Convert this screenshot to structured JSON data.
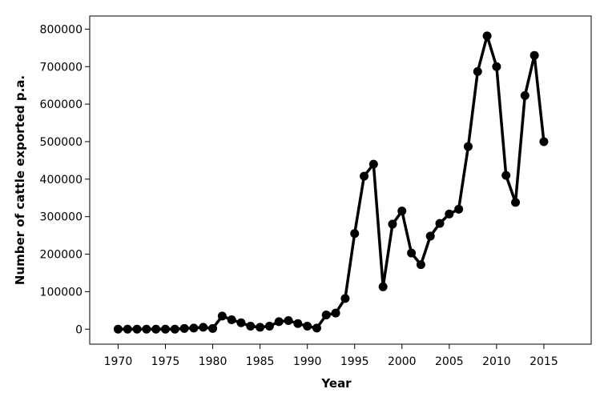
{
  "chart_data": {
    "type": "line",
    "title": "",
    "xlabel": "Year",
    "ylabel": "Number of cattle exported p.a.",
    "xlim": [
      1967,
      2020
    ],
    "ylim": [
      -40000,
      835000
    ],
    "x_ticks": [
      1970,
      1975,
      1980,
      1985,
      1990,
      1995,
      2000,
      2005,
      2010,
      2015
    ],
    "y_ticks": [
      0,
      100000,
      200000,
      300000,
      400000,
      500000,
      600000,
      700000,
      800000
    ],
    "grid": false,
    "legend": "none",
    "colors": {
      "line": "#000000",
      "marker": "#000000",
      "frame": "#000000"
    },
    "series": [
      {
        "x": [
          1970,
          1971,
          1972,
          1973,
          1974,
          1975,
          1976,
          1977,
          1978,
          1979,
          1980,
          1981,
          1982,
          1983,
          1984,
          1985,
          1986,
          1987,
          1988,
          1989,
          1990,
          1991,
          1992,
          1993,
          1994,
          1995,
          1996,
          1997,
          1998,
          1999,
          2000,
          2001,
          2002,
          2003,
          2004,
          2005,
          2006,
          2007,
          2008,
          2009,
          2010,
          2011,
          2012,
          2013,
          2014,
          2015
        ],
        "y": [
          0,
          0,
          0,
          0,
          0,
          0,
          0,
          2000,
          3000,
          5000,
          2000,
          35000,
          25000,
          17000,
          8000,
          5000,
          8000,
          20000,
          23000,
          15000,
          8000,
          3000,
          38000,
          43000,
          82000,
          255000,
          408000,
          440000,
          113000,
          280000,
          315000,
          203000,
          172000,
          248000,
          282000,
          307000,
          320000,
          487000,
          687000,
          782000,
          700000,
          410000,
          338000,
          623000,
          730000,
          500000
        ]
      }
    ]
  }
}
